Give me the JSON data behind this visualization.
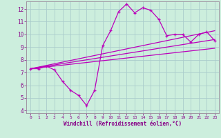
{
  "xlabel": "Windchill (Refroidissement éolien,°C)",
  "bg_color": "#cceedd",
  "grid_color": "#aacccc",
  "line_color": "#bb00bb",
  "xlim": [
    -0.5,
    23.5
  ],
  "ylim": [
    3.8,
    12.6
  ],
  "xticks": [
    0,
    1,
    2,
    3,
    4,
    5,
    6,
    7,
    8,
    9,
    10,
    11,
    12,
    13,
    14,
    15,
    16,
    17,
    18,
    19,
    20,
    21,
    22,
    23
  ],
  "yticks": [
    4,
    5,
    6,
    7,
    8,
    9,
    10,
    11,
    12
  ],
  "hours": [
    0,
    1,
    2,
    3,
    4,
    5,
    6,
    7,
    8,
    9,
    10,
    11,
    12,
    13,
    14,
    15,
    16,
    17,
    18,
    19,
    20,
    21,
    22,
    23
  ],
  "line1": [
    7.3,
    7.3,
    7.5,
    7.2,
    6.3,
    5.6,
    5.2,
    4.4,
    5.6,
    9.1,
    10.3,
    11.8,
    12.4,
    11.7,
    12.1,
    11.9,
    11.2,
    9.9,
    10.0,
    10.0,
    9.4,
    10.0,
    10.2,
    9.5
  ],
  "line2": [
    7.3,
    7.43,
    7.56,
    7.69,
    7.82,
    7.95,
    8.08,
    8.21,
    8.34,
    8.47,
    8.6,
    8.73,
    8.86,
    8.99,
    9.12,
    9.25,
    9.38,
    9.51,
    9.64,
    9.77,
    9.9,
    10.03,
    10.16,
    10.29
  ],
  "line3": [
    7.3,
    7.4,
    7.5,
    7.6,
    7.7,
    7.8,
    7.9,
    8.0,
    8.1,
    8.2,
    8.3,
    8.4,
    8.5,
    8.6,
    8.7,
    8.8,
    8.9,
    9.0,
    9.1,
    9.2,
    9.3,
    9.4,
    9.5,
    9.6
  ],
  "line4": [
    7.3,
    7.37,
    7.44,
    7.51,
    7.58,
    7.65,
    7.72,
    7.79,
    7.86,
    7.93,
    8.0,
    8.07,
    8.14,
    8.21,
    8.28,
    8.35,
    8.42,
    8.49,
    8.56,
    8.63,
    8.7,
    8.77,
    8.84,
    8.91
  ]
}
